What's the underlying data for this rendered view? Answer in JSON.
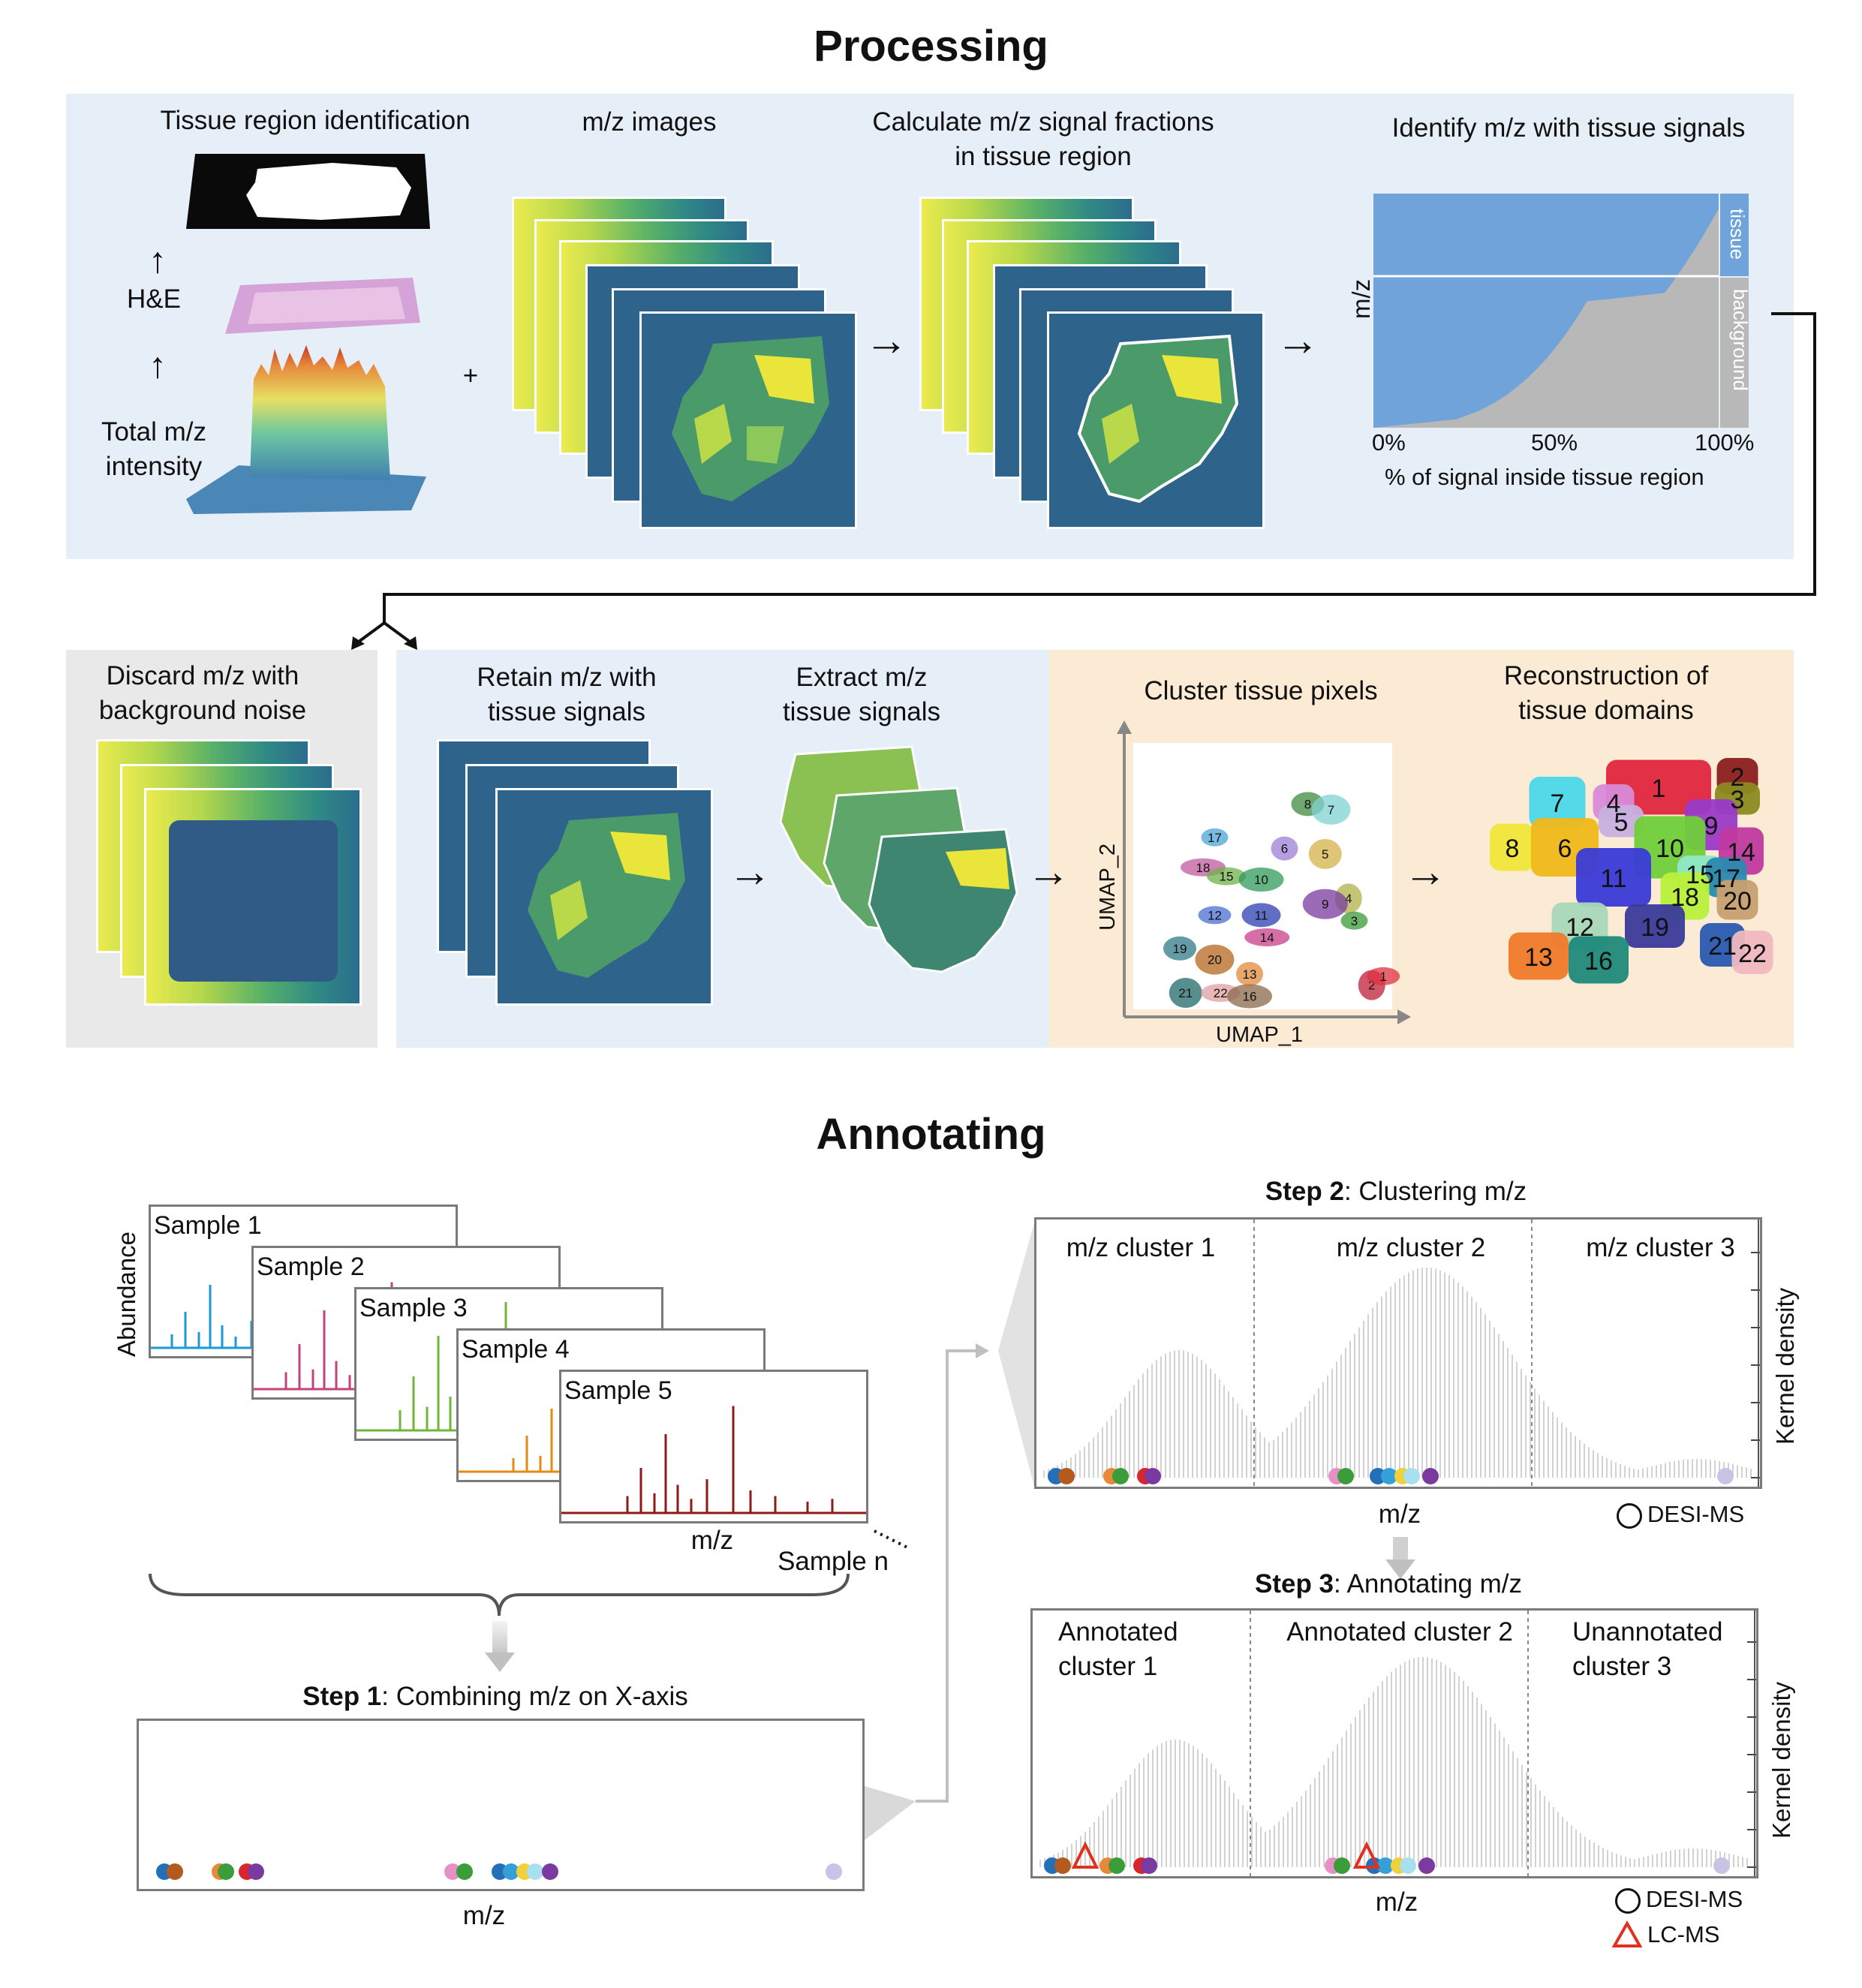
{
  "sections": {
    "processing_title": "Processing",
    "annotating_title": "Annotating"
  },
  "processing": {
    "tissue_region_label": "Tissue region identification",
    "he_label": "H&E",
    "total_mz_label_line1": "Total m/z",
    "total_mz_label_line2": "intensity",
    "plus": "+",
    "mz_images_label": "m/z images",
    "calc_label_line1": "Calculate m/z signal fractions",
    "calc_label_line2": "in tissue region",
    "identify_label": "Identify m/z with tissue signals",
    "fraction_chart": {
      "ylabel": "m/z",
      "xlabel": "% of signal inside tissue region",
      "xticks": [
        "0%",
        "50%",
        "100%"
      ],
      "tissue_tag": "tissue",
      "background_tag": "background",
      "tissue_color": "#6fa3d9",
      "background_color": "#b8b8b8"
    },
    "discard_label_line1": "Discard m/z with",
    "discard_label_line2": "background noise",
    "retain_label_line1": "Retain m/z with",
    "retain_label_line2": "tissue signals",
    "extract_label_line1": "Extract m/z",
    "extract_label_line2": "tissue signals",
    "cluster_label": "Cluster tissue pixels",
    "umap": {
      "xlabel": "UMAP_1",
      "ylabel": "UMAP_2",
      "cluster_ids": [
        "17",
        "8",
        "7",
        "18",
        "6",
        "5",
        "15",
        "10",
        "4",
        "12",
        "11",
        "9",
        "3",
        "19",
        "20",
        "14",
        "13",
        "21",
        "22",
        "16",
        "2",
        "1"
      ]
    },
    "reconstruction_label_line1": "Reconstruction of",
    "reconstruction_label_line2": "tissue domains",
    "domain_ids": [
      "1",
      "2",
      "3",
      "7",
      "4",
      "5",
      "9",
      "8",
      "6",
      "10",
      "14",
      "11",
      "15",
      "17",
      "18",
      "20",
      "12",
      "19",
      "13",
      "16",
      "21",
      "22"
    ]
  },
  "annotating": {
    "abundance_label": "Abundance",
    "samples": [
      "Sample 1",
      "Sample 2",
      "Sample 3",
      "Sample 4",
      "Sample 5"
    ],
    "sample_colors": [
      "#1a9ad6",
      "#c2447a",
      "#6fb63a",
      "#e38b13",
      "#8e1a1a"
    ],
    "mz_label": "m/z",
    "sample_n": "Sample n",
    "step1_bold": "Step 1",
    "step1_rest": ": Combining m/z on X-axis",
    "step2_bold": "Step 2",
    "step2_rest": ": Clustering m/z",
    "step3_bold": "Step 3",
    "step3_rest": ": Annotating m/z",
    "step2_clusters": [
      "m/z cluster 1",
      "m/z cluster 2",
      "m/z cluster 3"
    ],
    "step3_clusters": [
      {
        "line1": "Annotated",
        "line2": "cluster 1"
      },
      {
        "line1": "Annotated cluster 2",
        "line2": ""
      },
      {
        "line1": "Unannotated",
        "line2": "cluster 3"
      }
    ],
    "kernel_density_label": "Kernel density",
    "legend_desi": "DESI-MS",
    "legend_lcms": "LC-MS",
    "dot_colors": [
      "#2470b8",
      "#b35a1f",
      "#e8893a",
      "#3a9d3a",
      "#d8262c",
      "#7b3aa0",
      "#e690c8",
      "#35a0d8",
      "#f1d13a",
      "#a8e0f0",
      "#c9c3e6"
    ]
  }
}
